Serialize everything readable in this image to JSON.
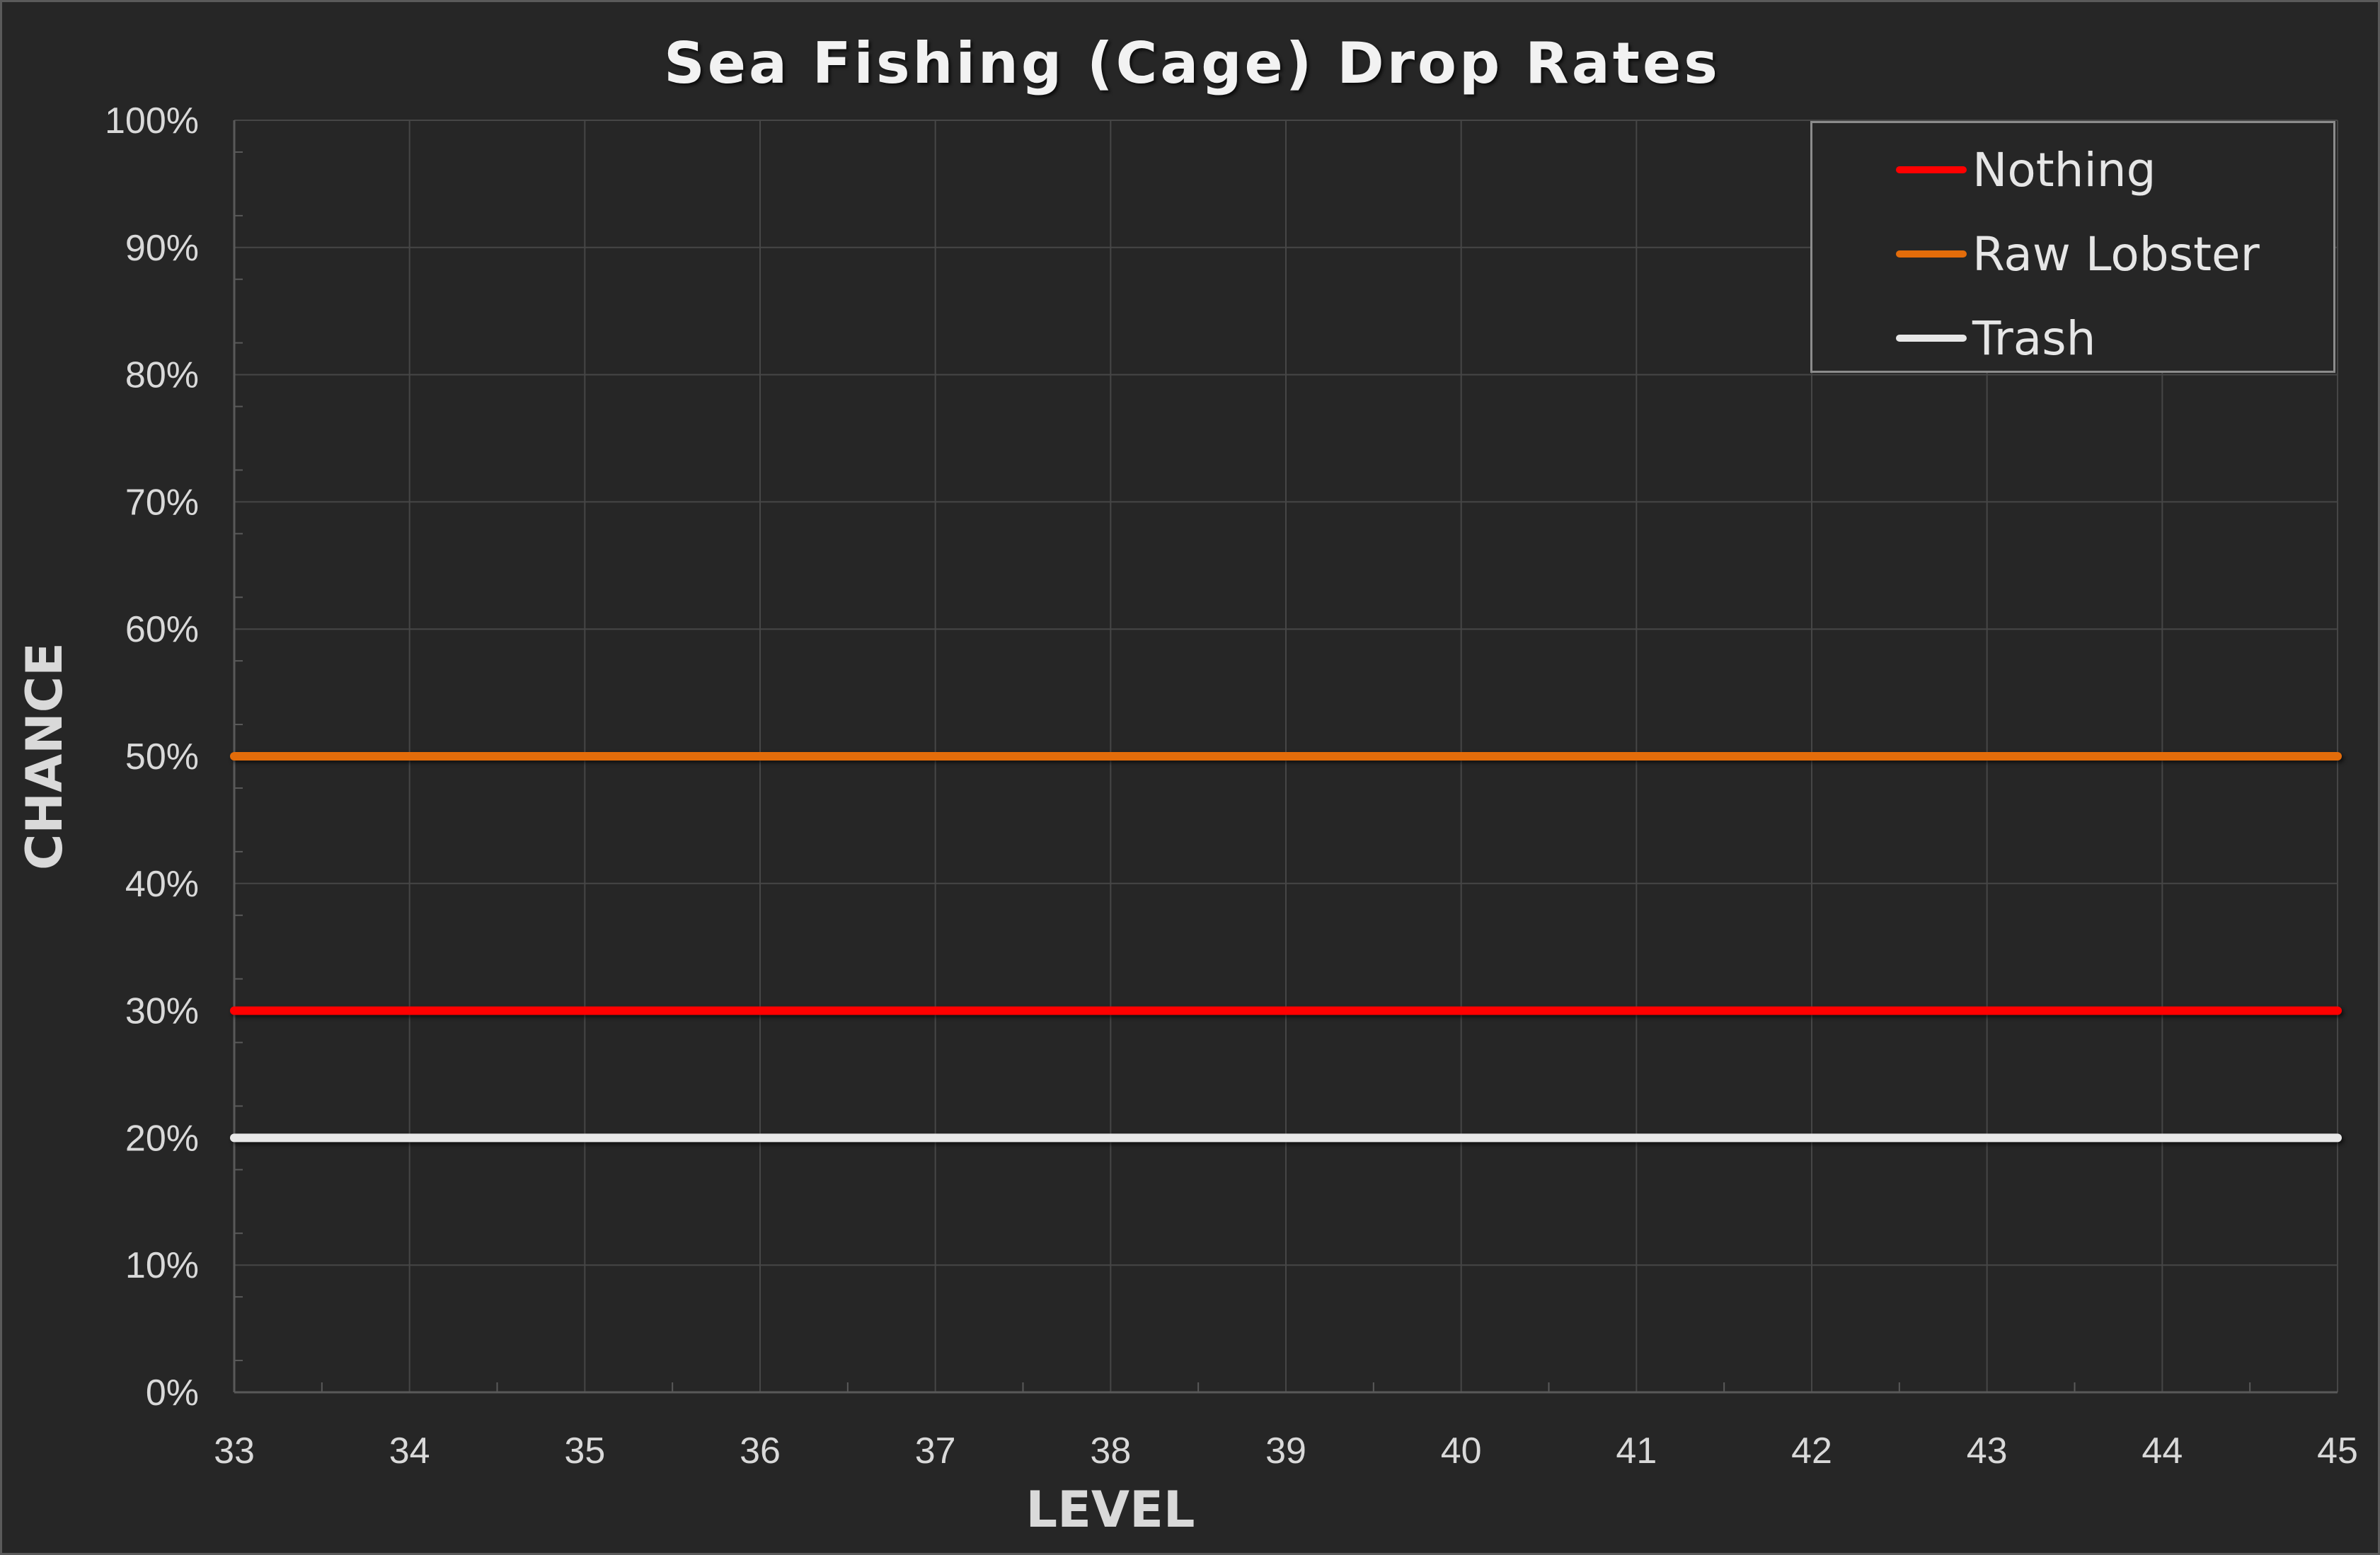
{
  "chart_data": {
    "type": "line",
    "title": "Sea Fishing (Cage) Drop Rates",
    "xlabel": "LEVEL",
    "ylabel": "CHANCE",
    "x": [
      33,
      34,
      35,
      36,
      37,
      38,
      39,
      40,
      41,
      42,
      43,
      44,
      45
    ],
    "xlim": [
      33,
      45
    ],
    "ylim": [
      0,
      100
    ],
    "y_unit": "%",
    "y_ticks": [
      "0%",
      "10%",
      "20%",
      "30%",
      "40%",
      "50%",
      "60%",
      "70%",
      "80%",
      "90%",
      "100%"
    ],
    "x_ticks": [
      "33",
      "34",
      "35",
      "36",
      "37",
      "38",
      "39",
      "40",
      "41",
      "42",
      "43",
      "44",
      "45"
    ],
    "grid": true,
    "legend_position": "top-right",
    "series": [
      {
        "name": "Nothing",
        "color": "#ff0000",
        "values": [
          30,
          30,
          30,
          30,
          30,
          30,
          30,
          30,
          30,
          30,
          30,
          30,
          30
        ]
      },
      {
        "name": "Raw Lobster",
        "color": "#e36c0a",
        "values": [
          50,
          50,
          50,
          50,
          50,
          50,
          50,
          50,
          50,
          50,
          50,
          50,
          50
        ]
      },
      {
        "name": "Trash",
        "color": "#e8e8e8",
        "values": [
          20,
          20,
          20,
          20,
          20,
          20,
          20,
          20,
          20,
          20,
          20,
          20,
          20
        ]
      }
    ]
  }
}
